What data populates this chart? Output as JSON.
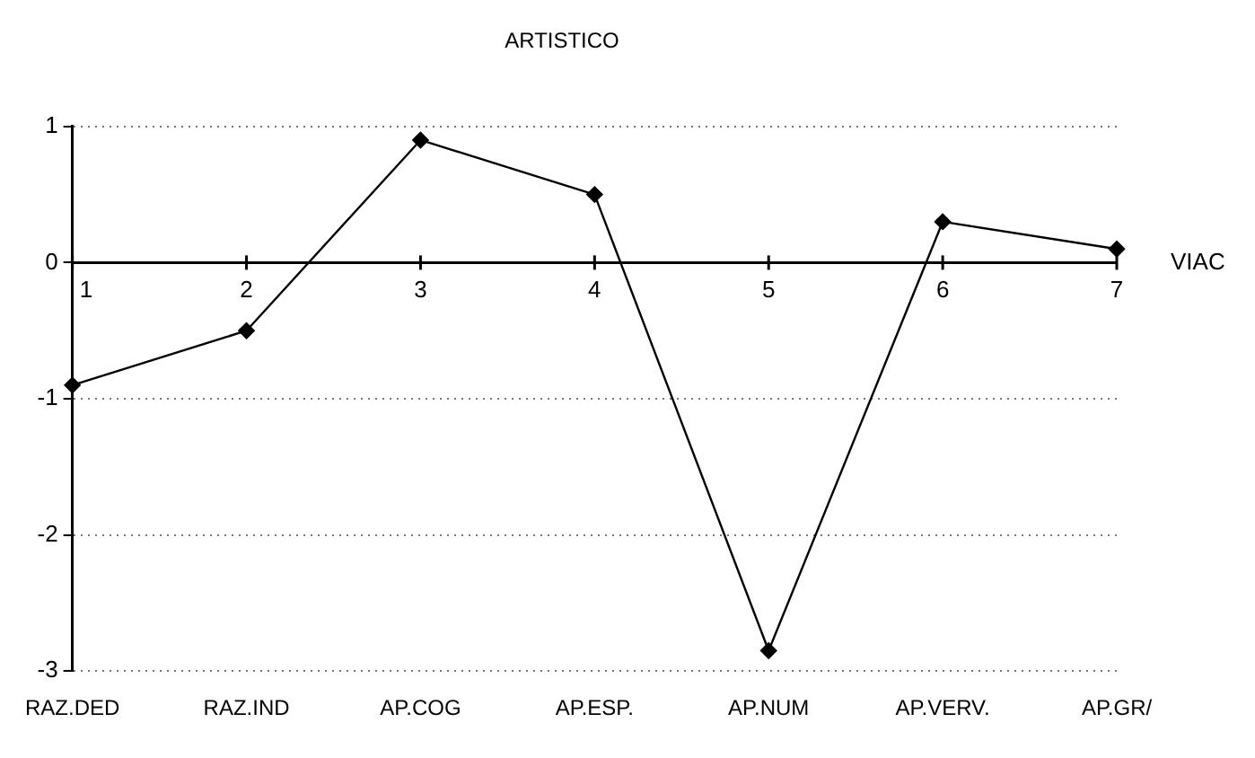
{
  "chart_data": {
    "type": "line",
    "title": "ARTISTICO",
    "xlabel": "VIAC",
    "categories": [
      "RAZ.DED",
      "RAZ.IND",
      "AP.COG",
      "AP.ESP.",
      "AP.NUM",
      "AP.VERV.",
      "AP.GR/"
    ],
    "series": [
      {
        "color": "#000000",
        "values": [
          -0.9,
          -0.5,
          0.9,
          0.5,
          -2.85,
          0.3,
          0.1
        ]
      }
    ],
    "ylim": [
      -3,
      1
    ],
    "yticks": [
      -3,
      -2,
      -1,
      0,
      1
    ],
    "grid": "y",
    "legend": false,
    "marker": "diamond",
    "line_style": "solid",
    "annotations": [
      "1",
      "2",
      "3",
      "4",
      "5",
      "6",
      "7"
    ]
  }
}
